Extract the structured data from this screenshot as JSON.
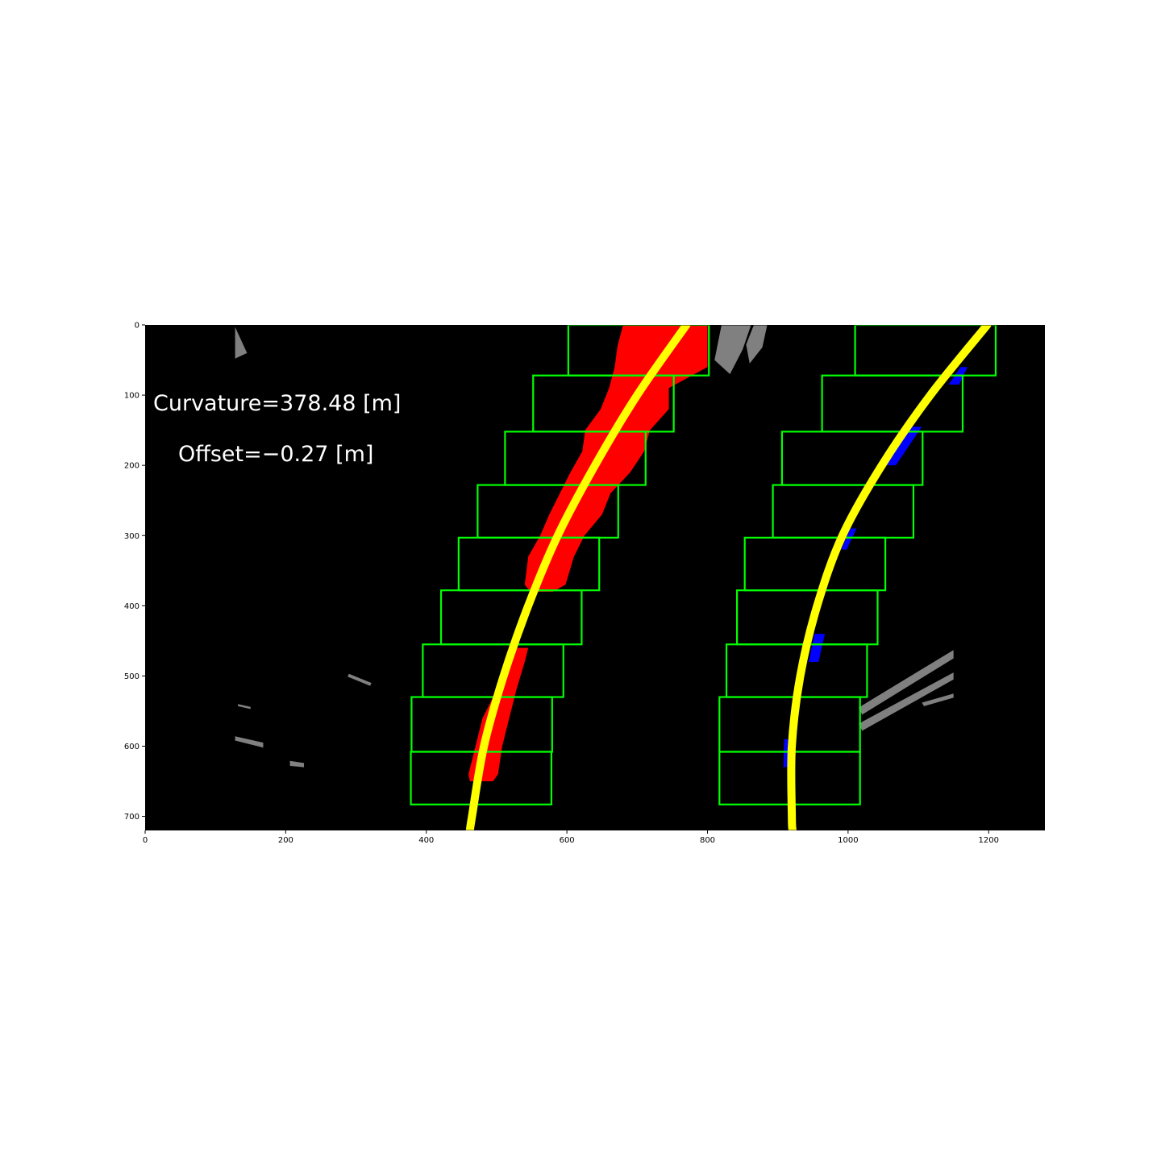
{
  "chart_data": {
    "type": "image",
    "image_size": [
      1280,
      720
    ],
    "xlim": [
      0,
      1280
    ],
    "ylim": [
      720,
      0
    ],
    "x_ticks": [
      0,
      200,
      400,
      600,
      800,
      1000,
      1200
    ],
    "y_ticks": [
      0,
      100,
      200,
      300,
      400,
      500,
      600,
      700
    ],
    "annotations": {
      "curvature": "Curvature=378.48 [m]",
      "offset": "Offset=−0.27 [m]"
    },
    "colors": {
      "background": "#000000",
      "window": "#00ff00",
      "fit_line": "#ffff00",
      "left_lane_pixels": "#ff0000",
      "right_lane_pixels": "#0000ff",
      "other_pixels": "#808080"
    },
    "left_windows": [
      {
        "x0": 602,
        "x1": 802,
        "y0": 0,
        "y1": 72
      },
      {
        "x0": 552,
        "x1": 752,
        "y0": 72,
        "y1": 152
      },
      {
        "x0": 512,
        "x1": 712,
        "y0": 152,
        "y1": 228
      },
      {
        "x0": 473,
        "x1": 673,
        "y0": 228,
        "y1": 303
      },
      {
        "x0": 446,
        "x1": 646,
        "y0": 303,
        "y1": 378
      },
      {
        "x0": 421,
        "x1": 621,
        "y0": 378,
        "y1": 455
      },
      {
        "x0": 395,
        "x1": 595,
        "y0": 455,
        "y1": 530
      },
      {
        "x0": 379,
        "x1": 579,
        "y0": 530,
        "y1": 608
      },
      {
        "x0": 378,
        "x1": 578,
        "y0": 608,
        "y1": 683
      }
    ],
    "right_windows": [
      {
        "x0": 1010,
        "x1": 1210,
        "y0": 0,
        "y1": 72
      },
      {
        "x0": 963,
        "x1": 1163,
        "y0": 72,
        "y1": 152
      },
      {
        "x0": 906,
        "x1": 1106,
        "y0": 152,
        "y1": 228
      },
      {
        "x0": 893,
        "x1": 1093,
        "y0": 228,
        "y1": 303
      },
      {
        "x0": 853,
        "x1": 1053,
        "y0": 303,
        "y1": 378
      },
      {
        "x0": 842,
        "x1": 1042,
        "y0": 378,
        "y1": 455
      },
      {
        "x0": 827,
        "x1": 1027,
        "y0": 455,
        "y1": 530
      },
      {
        "x0": 817,
        "x1": 1017,
        "y0": 530,
        "y1": 608
      },
      {
        "x0": 817,
        "x1": 1017,
        "y0": 608,
        "y1": 683
      }
    ],
    "left_fit": {
      "y": [
        0,
        100,
        200,
        300,
        400,
        500,
        600,
        700,
        720
      ],
      "x": [
        770,
        700,
        640,
        587,
        545,
        510,
        482,
        465,
        462
      ]
    },
    "right_fit": {
      "y": [
        0,
        100,
        200,
        300,
        400,
        500,
        600,
        700,
        720
      ],
      "x": [
        1198,
        1117,
        1048,
        992,
        956,
        932,
        920,
        920,
        921
      ]
    },
    "left_lane_pixels": [
      {
        "y": [
          0,
          30,
          60,
          90,
          120,
          150,
          180,
          210,
          240,
          270,
          300,
          330,
          370,
          380
        ],
        "xl": [
          680,
          672,
          668,
          660,
          648,
          626,
          622,
          605,
          590,
          575,
          562,
          545,
          540,
          548
        ],
        "xr": [
          800,
          800,
          800,
          745,
          745,
          718,
          710,
          690,
          662,
          650,
          625,
          610,
          598,
          580
        ]
      },
      {
        "y": [
          460,
          480,
          520,
          560,
          600,
          640,
          650
        ],
        "xl": [
          518,
          512,
          500,
          480,
          470,
          460,
          462
        ],
        "xr": [
          545,
          540,
          528,
          518,
          508,
          502,
          495
        ]
      }
    ],
    "right_lane_pixels": [
      {
        "y": [
          60,
          85
        ],
        "xl": [
          1160,
          1143
        ],
        "xr": [
          1170,
          1158
        ]
      },
      {
        "y": [
          145,
          200
        ],
        "xl": [
          1090,
          1053
        ],
        "xr": [
          1105,
          1068
        ]
      },
      {
        "y": [
          290,
          320
        ],
        "xl": [
          1003,
          990
        ],
        "xr": [
          1012,
          998
        ]
      },
      {
        "y": [
          440,
          480
        ],
        "xl": [
          952,
          944
        ],
        "xr": [
          967,
          958
        ]
      },
      {
        "y": [
          590,
          630
        ],
        "xl": [
          909,
          908
        ],
        "xr": [
          922,
          922
        ]
      }
    ],
    "other_pixels": [
      {
        "points": [
          [
            128,
            3
          ],
          [
            145,
            40
          ],
          [
            128,
            48
          ]
        ]
      },
      {
        "points": [
          [
            820,
            0
          ],
          [
            862,
            0
          ],
          [
            850,
            35
          ],
          [
            832,
            70
          ],
          [
            810,
            50
          ]
        ]
      },
      {
        "points": [
          [
            866,
            0
          ],
          [
            885,
            0
          ],
          [
            878,
            32
          ],
          [
            860,
            55
          ],
          [
            855,
            28
          ]
        ]
      },
      {
        "points": [
          [
            1015,
            545
          ],
          [
            1150,
            463
          ],
          [
            1150,
            475
          ],
          [
            1020,
            555
          ]
        ]
      },
      {
        "points": [
          [
            1015,
            568
          ],
          [
            1150,
            495
          ],
          [
            1150,
            505
          ],
          [
            1020,
            578
          ]
        ]
      },
      {
        "points": [
          [
            1105,
            538
          ],
          [
            1150,
            525
          ],
          [
            1150,
            531
          ],
          [
            1108,
            543
          ]
        ]
      },
      {
        "points": [
          [
            128,
            586
          ],
          [
            168,
            595
          ],
          [
            168,
            602
          ],
          [
            128,
            592
          ]
        ]
      },
      {
        "points": [
          [
            206,
            621
          ],
          [
            226,
            624
          ],
          [
            226,
            630
          ],
          [
            206,
            628
          ]
        ]
      },
      {
        "points": [
          [
            290,
            497
          ],
          [
            322,
            510
          ],
          [
            320,
            514
          ],
          [
            288,
            501
          ]
        ]
      },
      {
        "points": [
          [
            132,
            540
          ],
          [
            150,
            544
          ],
          [
            150,
            547
          ],
          [
            132,
            543
          ]
        ]
      }
    ]
  }
}
